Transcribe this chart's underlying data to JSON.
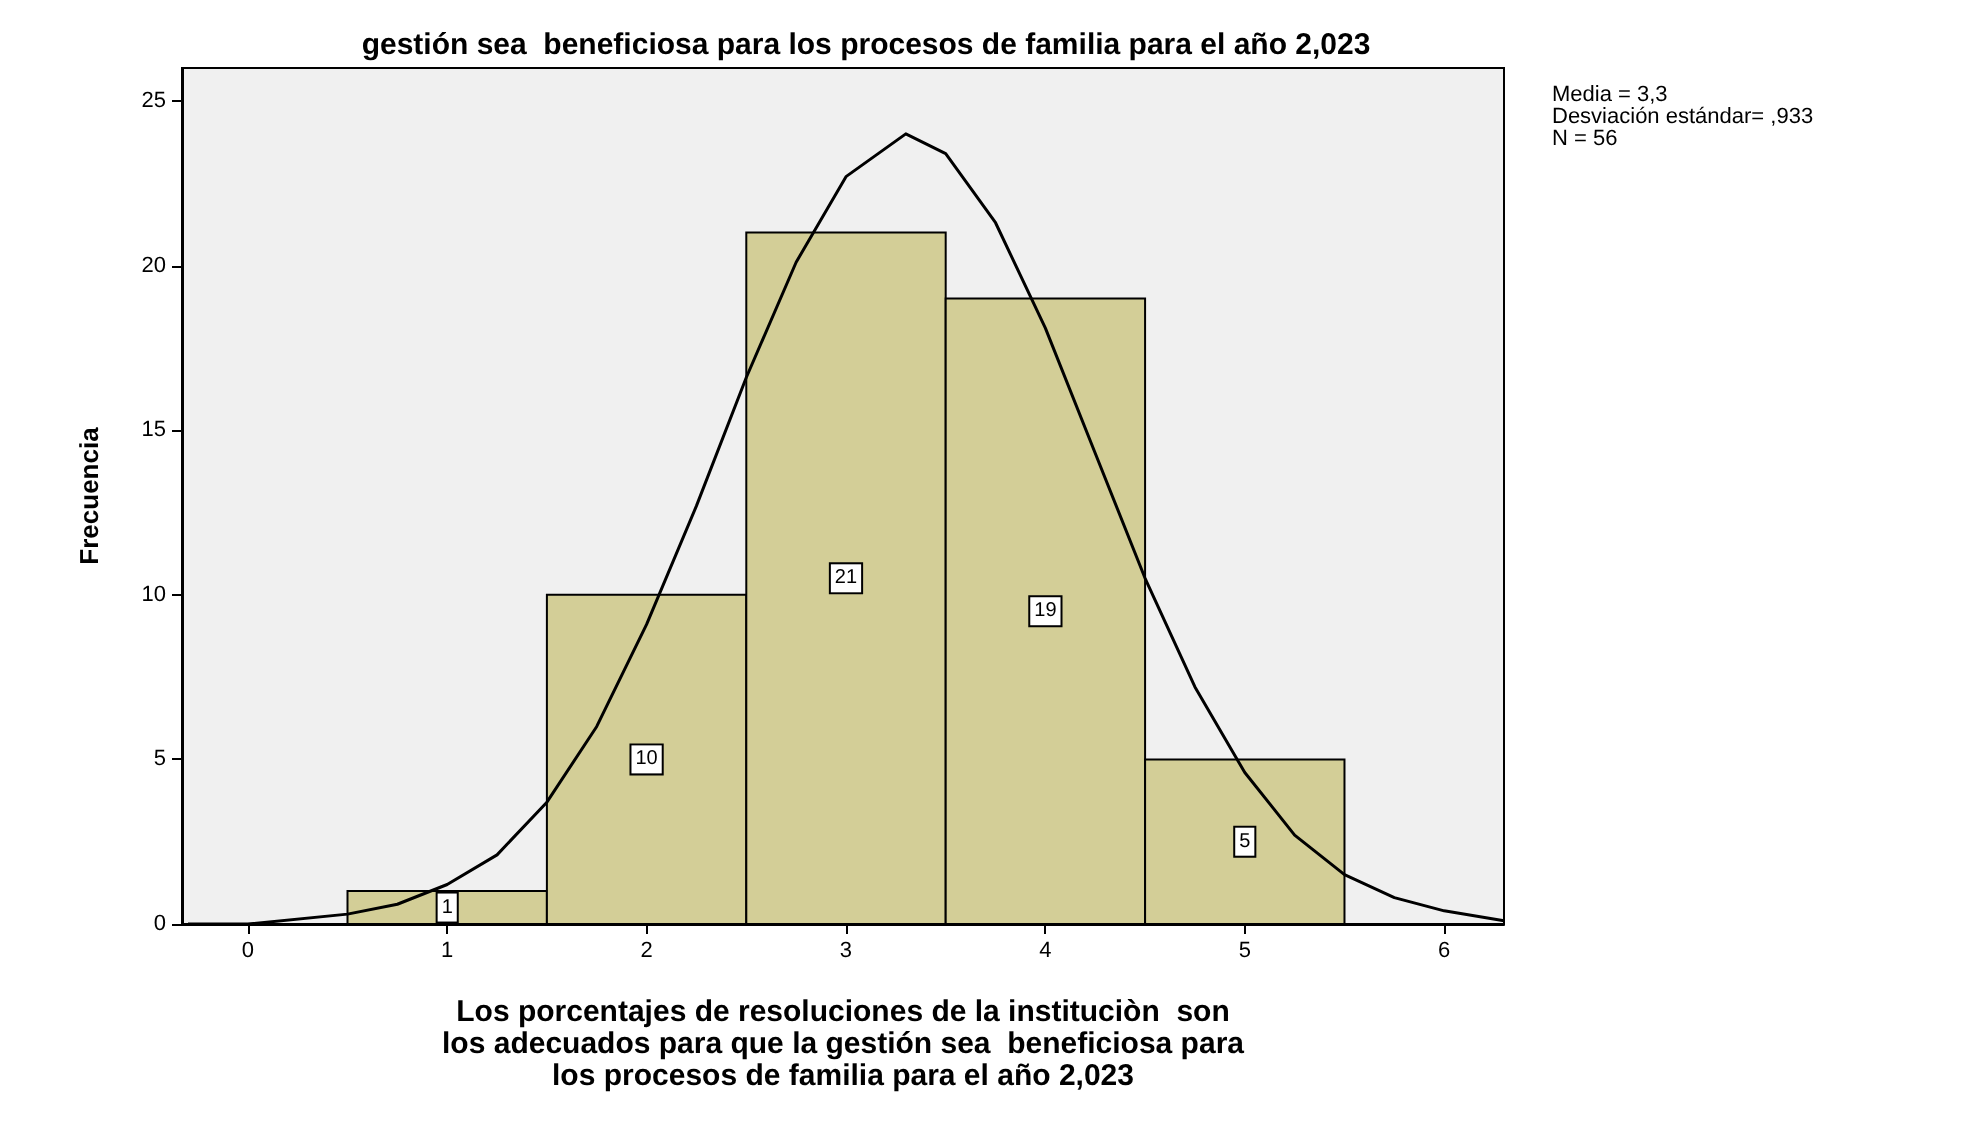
{
  "chart_data": {
    "type": "histogram",
    "title": "gestión sea  beneficiosa para los procesos de familia para el año 2,023",
    "xlabel": "Los porcentajes de resoluciones de la instituciòn  son\nlos adecuados para que la gestión sea  beneficiosa para\nlos procesos de familia para el año 2,023",
    "ylabel": "Frecuencia",
    "annotations": [
      "Media = 3,3\nDesviación estándar= ,933\nN = 56"
    ],
    "bins": [
      0.5,
      1.5,
      2.5,
      3.5,
      4.5,
      5.5
    ],
    "values": [
      1,
      10,
      21,
      19,
      5
    ],
    "color": "#d3ce97",
    "value_labels": [
      "1",
      "10",
      "21",
      "19",
      "5"
    ],
    "series": [
      {
        "type": "line",
        "color": "#000000",
        "x": [
          -0.3,
          0,
          0.5,
          0.75,
          1,
          1.25,
          1.5,
          1.75,
          2,
          2.25,
          2.5,
          2.75,
          3,
          3.3,
          3.5,
          3.75,
          4,
          4.25,
          4.5,
          4.75,
          5,
          5.25,
          5.5,
          5.75,
          6,
          6.3
        ],
        "values": [
          0,
          0,
          0.3,
          0.6,
          1.2,
          2.1,
          3.7,
          6,
          9.1,
          12.7,
          16.6,
          20.1,
          22.7,
          24,
          23.4,
          21.3,
          18.1,
          14.3,
          10.5,
          7.2,
          4.6,
          2.7,
          1.5,
          0.8,
          0.4,
          0.1
        ]
      }
    ],
    "marker": "none",
    "xlim": [
      -0.33,
      6.3
    ],
    "xticks": [
      0,
      1,
      2,
      3,
      4,
      5,
      6
    ],
    "ylim": [
      0,
      26
    ],
    "yticks": [
      0,
      5,
      10,
      15,
      20,
      25
    ],
    "grid": false
  }
}
